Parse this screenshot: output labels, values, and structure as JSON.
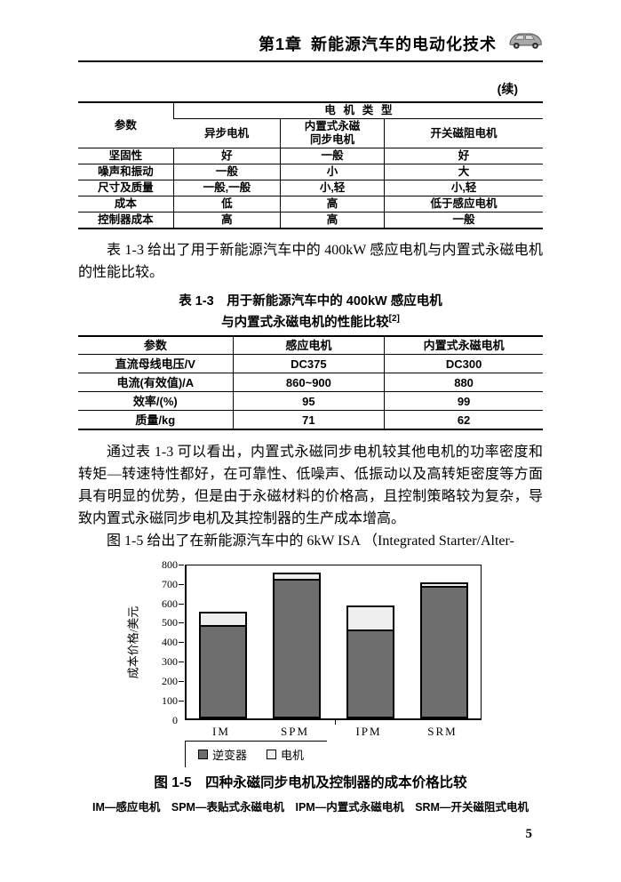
{
  "header": {
    "chapter": "第1章",
    "title": "新能源汽车的电动化技术"
  },
  "continued_label": "(续)",
  "table1": {
    "param_header": "参数",
    "group_header": "电机类型",
    "col_headers": [
      "异步电机",
      "内置式永磁\n同步电机",
      "开关磁阻电机"
    ],
    "rows": [
      {
        "param": "坚固性",
        "values": [
          "好",
          "一般",
          "好"
        ]
      },
      {
        "param": "噪声和振动",
        "values": [
          "一般",
          "小",
          "大"
        ]
      },
      {
        "param": "尺寸及质量",
        "values": [
          "一般,一般",
          "小,轻",
          "小,轻"
        ]
      },
      {
        "param": "成本",
        "values": [
          "低",
          "高",
          "低于感应电机"
        ]
      },
      {
        "param": "控制器成本",
        "values": [
          "高",
          "高",
          "一般"
        ]
      }
    ]
  },
  "paragraph1": "表 1-3 给出了用于新能源汽车中的 400kW 感应电机与内置式永磁电机的性能比较。",
  "table2": {
    "title_line1": "表 1-3　用于新能源汽车中的 400kW 感应电机",
    "title_line2": "与内置式永磁电机的性能比较",
    "title_sup": "[2]",
    "col_headers": [
      "参数",
      "感应电机",
      "内置式永磁电机"
    ],
    "rows": [
      [
        "直流母线电压/V",
        "DC375",
        "DC300"
      ],
      [
        "电流(有效值)/A",
        "860~900",
        "880"
      ],
      [
        "效率/(%)",
        "95",
        "99"
      ],
      [
        "质量/kg",
        "71",
        "62"
      ]
    ]
  },
  "paragraph2": "通过表 1-3 可以看出，内置式永磁同步电机较其他电机的功率密度和转矩—转速特性都好，在可靠性、低噪声、低振动以及高转矩密度等方面具有明显的优势，但是由于永磁材料的价格高，且控制策略较为复杂，导致内置式永磁同步电机及其控制器的生产成本增高。",
  "paragraph3": "图 1-5 给出了在新能源汽车中的 6kW ISA （Integrated Starter/Alter-",
  "chart_data": {
    "type": "bar",
    "stacked": true,
    "categories": [
      "IM",
      "SPM",
      "IPM",
      "SRM"
    ],
    "series": [
      {
        "name": "逆变器",
        "color": "#6e6e6e",
        "values": [
          470,
          710,
          450,
          670
        ]
      },
      {
        "name": "电机",
        "color": "#efefef",
        "values": [
          80,
          40,
          130,
          30
        ]
      }
    ],
    "totals": [
      550,
      750,
      580,
      700
    ],
    "title": "",
    "xlabel": "",
    "ylabel": "成本价格/美元",
    "ylim": [
      0,
      800
    ],
    "ytick_step": 100,
    "grid": false,
    "legend_position": "bottom-left"
  },
  "figure": {
    "caption": "图 1-5　四种永磁同步电机及控制器的成本价格比较",
    "note": "IM—感应电机　SPM—表贴式永磁电机　IPM—内置式永磁电机　SRM—开关磁阻式电机"
  },
  "page_number": "5"
}
